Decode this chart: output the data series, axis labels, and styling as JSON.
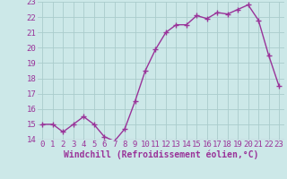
{
  "x": [
    0,
    1,
    2,
    3,
    4,
    5,
    6,
    7,
    8,
    9,
    10,
    11,
    12,
    13,
    14,
    15,
    16,
    17,
    18,
    19,
    20,
    21,
    22,
    23
  ],
  "y": [
    15.0,
    15.0,
    14.5,
    15.0,
    15.5,
    15.0,
    14.2,
    13.9,
    14.7,
    16.5,
    18.5,
    19.9,
    21.0,
    21.5,
    21.5,
    22.1,
    21.9,
    22.3,
    22.2,
    22.5,
    22.8,
    21.8,
    19.5,
    17.5
  ],
  "color": "#993399",
  "bg_color": "#cce8e8",
  "grid_color": "#aacccc",
  "xlabel": "Windchill (Refroidissement éolien,°C)",
  "ylim": [
    14,
    23
  ],
  "xlim_min": -0.5,
  "xlim_max": 23.5,
  "yticks": [
    14,
    15,
    16,
    17,
    18,
    19,
    20,
    21,
    22,
    23
  ],
  "xticks": [
    0,
    1,
    2,
    3,
    4,
    5,
    6,
    7,
    8,
    9,
    10,
    11,
    12,
    13,
    14,
    15,
    16,
    17,
    18,
    19,
    20,
    21,
    22,
    23
  ],
  "xlabel_fontsize": 7,
  "tick_fontsize": 6.5,
  "marker": "+",
  "linewidth": 1.0,
  "markersize": 4,
  "markeredgewidth": 1.0
}
